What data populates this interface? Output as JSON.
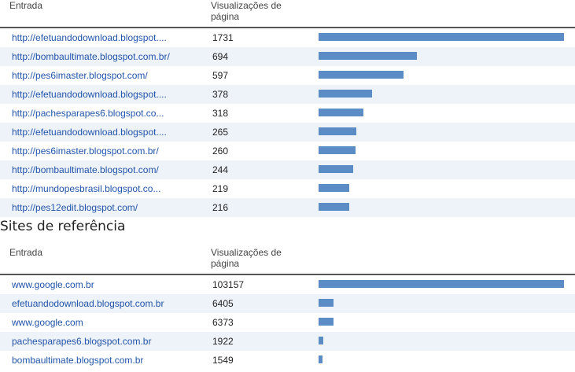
{
  "colors": {
    "bar": "#5b8cc6",
    "link": "#2255aa",
    "row_alt": "#eef2f9"
  },
  "top_table": {
    "header": {
      "entry": "Entrada",
      "views": "Visualizações de página"
    },
    "max": 1731,
    "rows": [
      {
        "entry": "http://efetuandodownload.blogspot....",
        "views": 1731
      },
      {
        "entry": "http://bombaultimate.blogspot.com.br/",
        "views": 694
      },
      {
        "entry": "http://pes6imaster.blogspot.com/",
        "views": 597
      },
      {
        "entry": "http://efetuandodownload.blogspot....",
        "views": 378
      },
      {
        "entry": "http://pachesparapes6.blogspot.co...",
        "views": 318
      },
      {
        "entry": "http://efetuandodownload.blogspot....",
        "views": 265
      },
      {
        "entry": "http://pes6imaster.blogspot.com.br/",
        "views": 260
      },
      {
        "entry": "http://bombaultimate.blogspot.com/",
        "views": 244
      },
      {
        "entry": "http://mundopesbrasil.blogspot.co...",
        "views": 219
      },
      {
        "entry": "http://pes12edit.blogspot.com/",
        "views": 216
      }
    ]
  },
  "referrers_title": "Sites de referência",
  "referrers_table": {
    "header": {
      "entry": "Entrada",
      "views": "Visualizações de página"
    },
    "max": 103157,
    "rows": [
      {
        "entry": "www.google.com.br",
        "views": 103157
      },
      {
        "entry": "efetuandodownload.blogspot.com.br",
        "views": 6405
      },
      {
        "entry": "www.google.com",
        "views": 6373
      },
      {
        "entry": "pachesparapes6.blogspot.com.br",
        "views": 1922
      },
      {
        "entry": "bombaultimate.blogspot.com.br",
        "views": 1549
      }
    ]
  }
}
